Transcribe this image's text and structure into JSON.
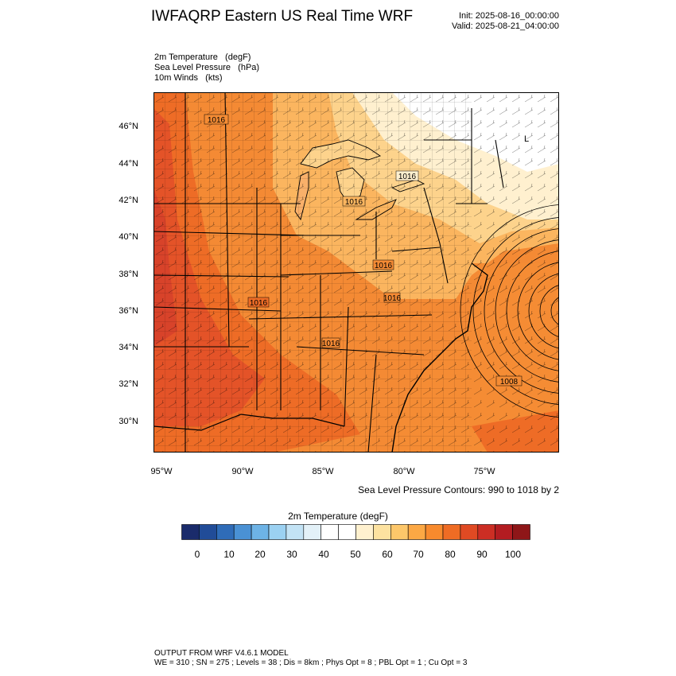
{
  "title": "IWFAQRP Eastern US Real Time WRF",
  "init_label": "Init: 2025-08-16_00:00:00",
  "valid_label": "Valid: 2025-08-21_04:00:00",
  "fields": [
    "2m Temperature   (degF)",
    "Sea Level Pressure   (hPa)",
    "10m Winds   (kts)"
  ],
  "map": {
    "lat_ticks": [
      "46°N",
      "44°N",
      "42°N",
      "40°N",
      "38°N",
      "36°N",
      "34°N",
      "32°N",
      "30°N"
    ],
    "lon_ticks": [
      "95°W",
      "90°W",
      "85°W",
      "80°W",
      "75°W"
    ],
    "pressure_labels": [
      "1016",
      "1016",
      "1016",
      "1016",
      "1016",
      "1016",
      "1016",
      "1008"
    ],
    "low_marker": "L"
  },
  "contour_note": "Sea Level Pressure Contours: 990 to 1018 by 2",
  "colorbar": {
    "title": "2m Temperature  (degF)",
    "labels": [
      "0",
      "10",
      "20",
      "30",
      "40",
      "50",
      "60",
      "70",
      "80",
      "90",
      "100"
    ],
    "colors": [
      "#1a2b6b",
      "#214c98",
      "#2f6cb8",
      "#4a91d4",
      "#6db3e6",
      "#9bd1f2",
      "#c3e3f5",
      "#e3f1f8",
      "#ffffff",
      "#ffffff",
      "#fff1cf",
      "#fde2a0",
      "#fdc76a",
      "#fca844",
      "#f88a2d",
      "#ef6c24",
      "#e04a23",
      "#cc2e24",
      "#b31c21",
      "#8e1618"
    ]
  },
  "footer": {
    "line1": "OUTPUT FROM WRF V4.6.1 MODEL",
    "line2": "WE = 310 ; SN = 275 ; Levels = 38 ; Dis = 8km ; Phys Opt = 8 ; PBL Opt = 1 ; Cu Opt = 3"
  }
}
